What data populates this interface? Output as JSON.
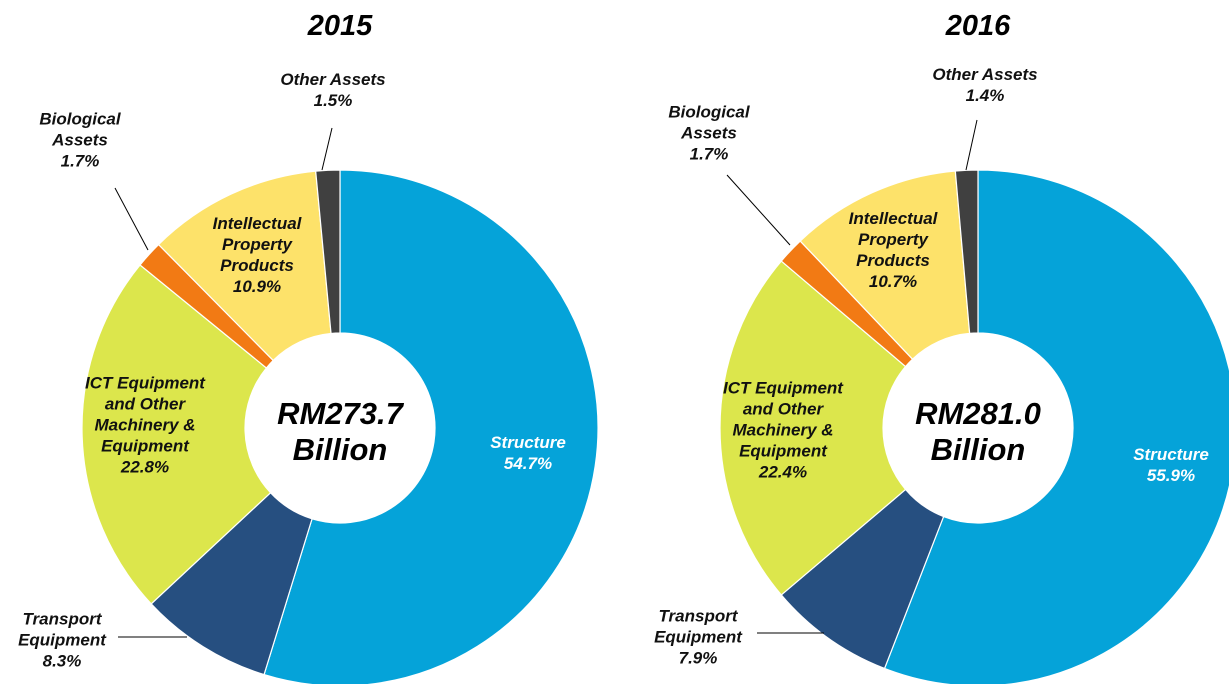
{
  "chart_data": [
    {
      "type": "donut",
      "title": "2015",
      "center_label": [
        "RM273.7",
        "Billion"
      ],
      "categories": [
        "Structure",
        "Transport Equipment",
        "ICT Equipment and Other Machinery & Equipment",
        "Biological Assets",
        "Intellectual Property Products",
        "Other Assets"
      ],
      "values": [
        54.7,
        8.3,
        22.8,
        1.7,
        10.9,
        1.5
      ],
      "value_labels": [
        "54.7%",
        "8.3%",
        "22.8%",
        "1.7%",
        "10.9%",
        "1.5%"
      ],
      "colors": [
        "#05a3d9",
        "#264f80",
        "#dce64c",
        "#f27a14",
        "#fde26a",
        "#404040"
      ]
    },
    {
      "type": "donut",
      "title": "2016",
      "center_label": [
        "RM281.0",
        "Billion"
      ],
      "categories": [
        "Structure",
        "Transport Equipment",
        "ICT Equipment and Other Machinery & Equipment",
        "Biological Assets",
        "Intellectual Property Products",
        "Other Assets"
      ],
      "values": [
        55.9,
        7.9,
        22.4,
        1.7,
        10.7,
        1.4
      ],
      "value_labels": [
        "55.9%",
        "7.9%",
        "22.4%",
        "1.7%",
        "10.7%",
        "1.4%"
      ],
      "colors": [
        "#05a3d9",
        "#264f80",
        "#dce64c",
        "#f27a14",
        "#fde26a",
        "#404040"
      ]
    }
  ]
}
